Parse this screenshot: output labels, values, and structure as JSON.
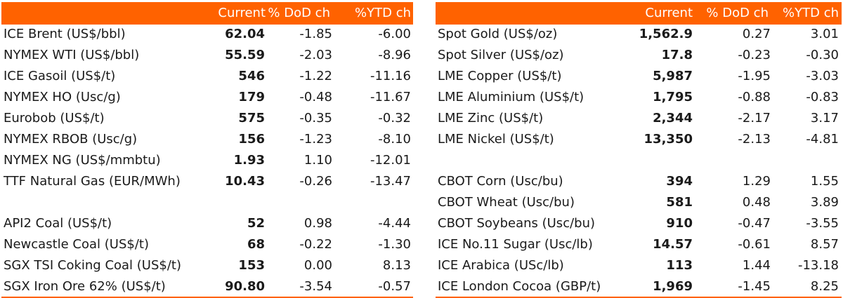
{
  "headers": {
    "current": "Current",
    "dod": "% DoD ch",
    "ytd": "%YTD ch"
  },
  "left": [
    {
      "name": "ICE Brent (US$/bbl)",
      "current": "62.04",
      "dod": "-1.85",
      "ytd": "-6.00"
    },
    {
      "name": "NYMEX WTI (US$/bbl)",
      "current": "55.59",
      "dod": "-2.03",
      "ytd": "-8.96"
    },
    {
      "name": "ICE Gasoil (US$/t)",
      "current": "546",
      "dod": "-1.22",
      "ytd": "-11.16"
    },
    {
      "name": "NYMEX HO (Usc/g)",
      "current": "179",
      "dod": "-0.48",
      "ytd": "-11.67"
    },
    {
      "name": "Eurobob (US$/t)",
      "current": "575",
      "dod": "-0.35",
      "ytd": "-0.32"
    },
    {
      "name": "NYMEX RBOB (Usc/g)",
      "current": "156",
      "dod": "-1.23",
      "ytd": "-8.10"
    },
    {
      "name": "NYMEX NG (US$/mmbtu)",
      "current": "1.93",
      "dod": "1.10",
      "ytd": "-12.01"
    },
    {
      "name": "TTF Natural Gas (EUR/MWh)",
      "current": "10.43",
      "dod": "-0.26",
      "ytd": "-13.47"
    },
    {
      "name": "",
      "current": "",
      "dod": "",
      "ytd": ""
    },
    {
      "name": "API2 Coal (US$/t)",
      "current": "52",
      "dod": "0.98",
      "ytd": "-4.44"
    },
    {
      "name": "Newcastle Coal (US$/t)",
      "current": "68",
      "dod": "-0.22",
      "ytd": "-1.30"
    },
    {
      "name": "SGX TSI Coking Coal (US$/t)",
      "current": "153",
      "dod": "0.00",
      "ytd": "8.13"
    },
    {
      "name": "SGX Iron Ore 62% (US$/t)",
      "current": "90.80",
      "dod": "-3.54",
      "ytd": "-0.57"
    }
  ],
  "right": [
    {
      "name": "Spot Gold (US$/oz)",
      "current": "1,562.9",
      "dod": "0.27",
      "ytd": "3.01"
    },
    {
      "name": "Spot Silver (US$/oz)",
      "current": "17.8",
      "dod": "-0.23",
      "ytd": "-0.30"
    },
    {
      "name": "LME Copper (US$/t)",
      "current": "5,987",
      "dod": "-1.95",
      "ytd": "-3.03"
    },
    {
      "name": "LME Aluminium (US$/t)",
      "current": "1,795",
      "dod": "-0.88",
      "ytd": "-0.83"
    },
    {
      "name": "LME Zinc (US$/t)",
      "current": "2,344",
      "dod": "-2.17",
      "ytd": "3.17"
    },
    {
      "name": "LME Nickel (US$/t)",
      "current": "13,350",
      "dod": "-2.13",
      "ytd": "-4.81"
    },
    {
      "name": "",
      "current": "",
      "dod": "",
      "ytd": ""
    },
    {
      "name": "CBOT Corn (Usc/bu)",
      "current": "394",
      "dod": "1.29",
      "ytd": "1.55"
    },
    {
      "name": "CBOT Wheat (Usc/bu)",
      "current": "581",
      "dod": "0.48",
      "ytd": "3.89"
    },
    {
      "name": "CBOT Soybeans (Usc/bu)",
      "current": "910",
      "dod": "-0.47",
      "ytd": "-3.55"
    },
    {
      "name": "ICE No.11 Sugar (Usc/lb)",
      "current": "14.57",
      "dod": "-0.61",
      "ytd": "8.57"
    },
    {
      "name": "ICE Arabica (USc/lb)",
      "current": "113",
      "dod": "1.44",
      "ytd": "-13.18"
    },
    {
      "name": "ICE London Cocoa (GBP/t)",
      "current": "1,969",
      "dod": "-1.45",
      "ytd": "8.25"
    }
  ],
  "colors": {
    "accent": "#ff6200",
    "text": "#1a1a1a"
  }
}
